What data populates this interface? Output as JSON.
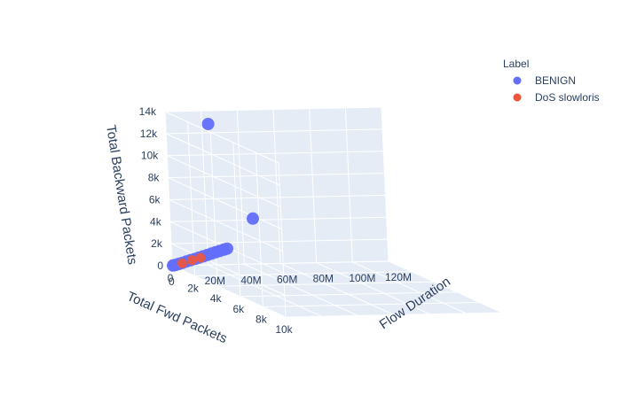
{
  "chart_data": {
    "type": "scatter3d",
    "axes": {
      "x": {
        "label": "Total Fwd Packets",
        "ticks": [
          "0",
          "2k",
          "4k",
          "6k",
          "8k",
          "10k"
        ],
        "range": [
          0,
          10000
        ]
      },
      "y": {
        "label": "Flow Duration",
        "ticks": [
          "0",
          "20M",
          "40M",
          "60M",
          "80M",
          "100M",
          "120M"
        ],
        "range": [
          0,
          120000000
        ]
      },
      "z": {
        "label": "Total Backward Packets",
        "ticks": [
          "0",
          "2k",
          "4k",
          "6k",
          "8k",
          "10k",
          "12k",
          "14k"
        ],
        "range": [
          0,
          14000
        ]
      }
    },
    "legend": {
      "title": "Label",
      "placement": "top-right"
    },
    "series": [
      {
        "name": "BENIGN",
        "color": "#636efa",
        "points": [
          {
            "x": 50,
            "y": 200000,
            "z": 40
          },
          {
            "x": 120,
            "y": 600000,
            "z": 100
          },
          {
            "x": 250,
            "y": 1000000,
            "z": 220
          },
          {
            "x": 400,
            "y": 1500000,
            "z": 350
          },
          {
            "x": 600,
            "y": 2000000,
            "z": 520
          },
          {
            "x": 900,
            "y": 2500000,
            "z": 800
          },
          {
            "x": 1200,
            "y": 3000000,
            "z": 1050
          },
          {
            "x": 1500,
            "y": 3500000,
            "z": 1300
          },
          {
            "x": 1800,
            "y": 4000000,
            "z": 1560
          },
          {
            "x": 2100,
            "y": 4500000,
            "z": 1820
          },
          {
            "x": 2400,
            "y": 5000000,
            "z": 2080
          },
          {
            "x": 2700,
            "y": 5500000,
            "z": 2340
          },
          {
            "x": 3000,
            "y": 6000000,
            "z": 2600
          },
          {
            "x": 3300,
            "y": 6500000,
            "z": 2860
          },
          {
            "x": 3600,
            "y": 7000000,
            "z": 3120
          },
          {
            "x": 3800,
            "y": 7500000,
            "z": 3300
          },
          {
            "x": 150,
            "y": 45000000,
            "z": 4200
          },
          {
            "x": 3500,
            "y": 2000000,
            "z": 14500
          }
        ]
      },
      {
        "name": "DoS slowloris",
        "color": "#ef553b",
        "points": [
          {
            "x": 600,
            "y": 2000000,
            "z": 500
          },
          {
            "x": 1300,
            "y": 3200000,
            "z": 1100
          },
          {
            "x": 1900,
            "y": 4200000,
            "z": 1600
          }
        ]
      }
    ]
  }
}
